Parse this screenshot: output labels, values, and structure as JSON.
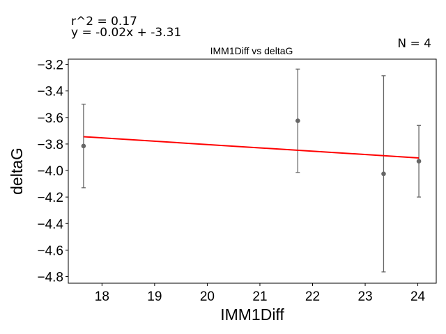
{
  "annotations": {
    "r2": "r^2 = 0.17",
    "equation": "y = -0.02x + -3.31",
    "n": "N = 4"
  },
  "chart_data": {
    "type": "scatter",
    "title": "IMM1Diff vs deltaG",
    "xlabel": "IMM1Diff",
    "ylabel": "deltaG",
    "xlim": [
      17.36,
      24.35
    ],
    "ylim": [
      -4.85,
      -3.16
    ],
    "xticks": [
      18,
      19,
      20,
      21,
      22,
      23,
      24
    ],
    "yticks": [
      -3.2,
      -3.4,
      -3.6,
      -3.8,
      -4.0,
      -4.2,
      -4.4,
      -4.6,
      -4.8
    ],
    "xtick_labels": [
      "18",
      "19",
      "20",
      "21",
      "22",
      "23",
      "24"
    ],
    "ytick_labels": [
      "−3.2",
      "−3.4",
      "−3.6",
      "−3.8",
      "−4.0",
      "−4.2",
      "−4.4",
      "−4.6",
      "−4.8"
    ],
    "points": [
      {
        "x": 17.65,
        "y": -3.815,
        "err": 0.315
      },
      {
        "x": 21.72,
        "y": -3.625,
        "err": 0.39
      },
      {
        "x": 23.35,
        "y": -4.025,
        "err": 0.74
      },
      {
        "x": 24.02,
        "y": -3.93,
        "err": 0.27
      }
    ],
    "fit_line": {
      "x": [
        17.65,
        24.02
      ],
      "y": [
        -3.745,
        -3.905
      ]
    },
    "grid": false,
    "colors": {
      "points": "#666666",
      "errorbars": "#666666",
      "fit": "#ff0000"
    }
  }
}
